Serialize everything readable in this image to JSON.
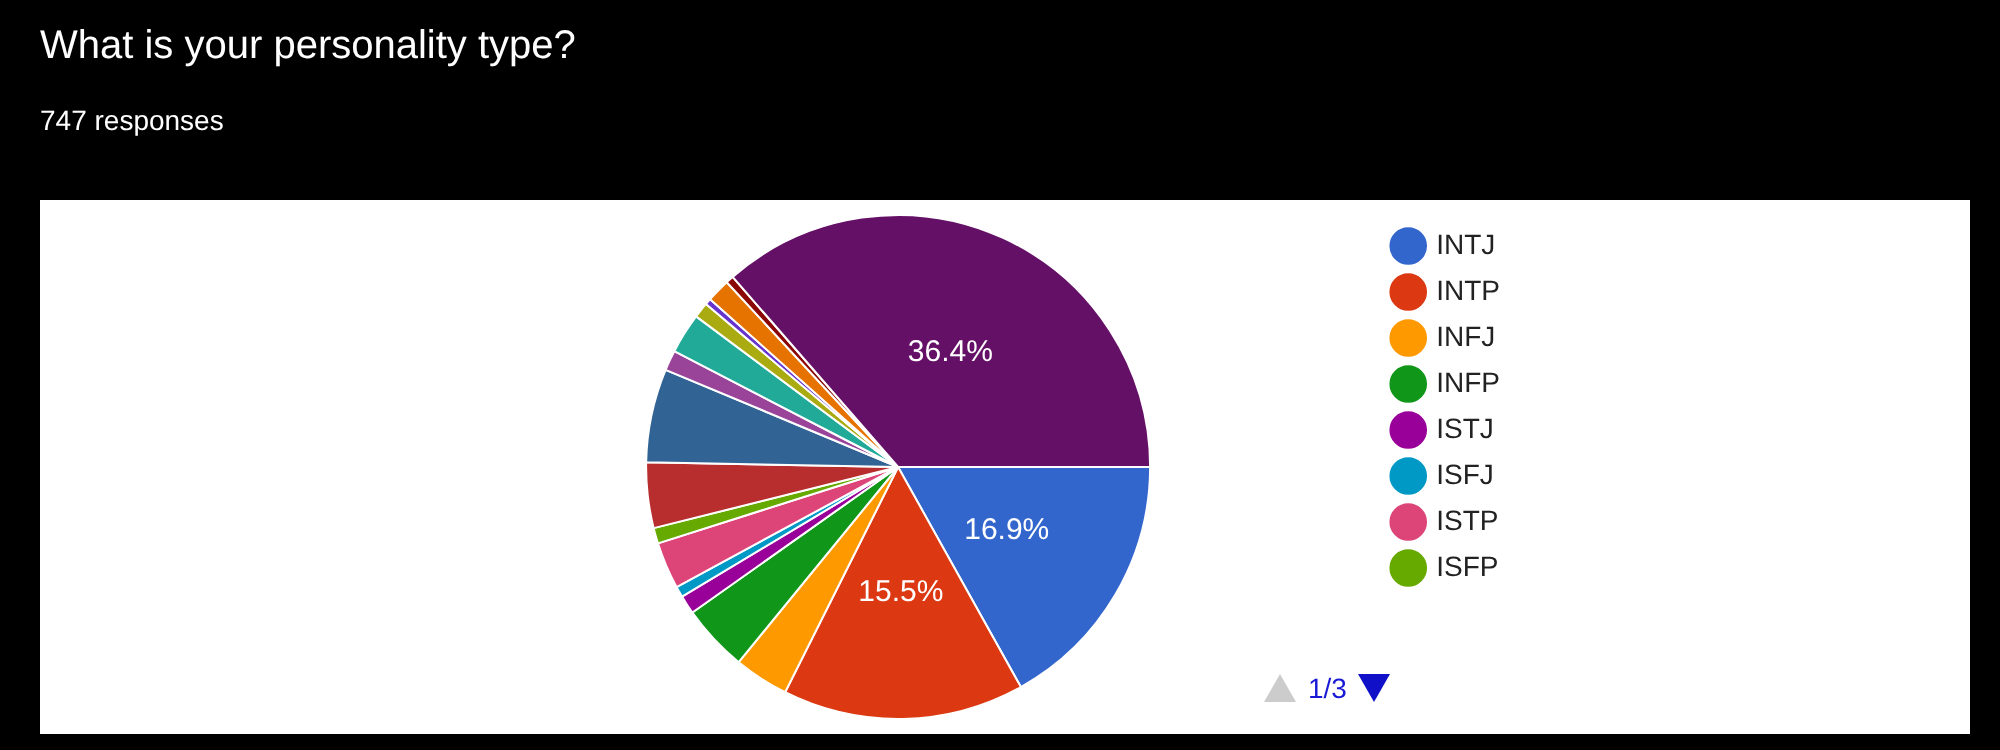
{
  "chart_data": {
    "type": "pie",
    "title": "What is your personality type?",
    "subtitle": "747 responses",
    "categories": [
      "INTJ",
      "INTP",
      "INFJ",
      "INFP",
      "ISTJ",
      "ISFJ",
      "ISTP",
      "ISFP",
      null,
      null,
      null,
      null,
      null,
      null,
      null,
      null,
      null
    ],
    "values": [
      16.9,
      15.5,
      3.5,
      4.3,
      1.2,
      0.7,
      3.0,
      1.0,
      4.2,
      6.0,
      1.3,
      2.6,
      1.0,
      0.4,
      1.5,
      0.5,
      36.4
    ],
    "colors": [
      "#3366cc",
      "#dc3912",
      "#ff9900",
      "#109618",
      "#990099",
      "#0099c6",
      "#dd4477",
      "#66aa00",
      "#b82e2e",
      "#316395",
      "#994499",
      "#22aa99",
      "#aaaa11",
      "#6633cc",
      "#e67300",
      "#8b0707",
      "#651067"
    ],
    "value_labels": [
      "16.9%",
      "15.5%",
      null,
      null,
      null,
      null,
      null,
      null,
      null,
      null,
      null,
      null,
      null,
      null,
      null,
      null,
      "36.4%"
    ],
    "legend": "right",
    "annotations": [
      "1/3"
    ]
  }
}
